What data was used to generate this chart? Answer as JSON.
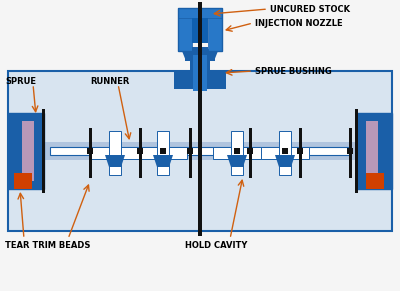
{
  "bg": "#f5f5f5",
  "blue_dark": "#1a5fa8",
  "blue_mid": "#2878c8",
  "blue_light": "#c8d8ee",
  "blue_lighter": "#d8e4f0",
  "white": "#ffffff",
  "black": "#111111",
  "pink": "#b898b8",
  "orange_tip": "#d04000",
  "arrow_color": "#d06010",
  "labels": {
    "uncured_stock": "UNCURED STOCK",
    "injection_nozzle": "INJECTION NOZZLE",
    "sprue_bushing": "SPRUE BUSHING",
    "sprue": "SPRUE",
    "runner": "RUNNER",
    "tear_trim_beads": "TEAR TRIM BEADS",
    "hold_cavity": "HOLD CAVITY"
  },
  "figsize": [
    4.0,
    2.91
  ],
  "dpi": 100
}
